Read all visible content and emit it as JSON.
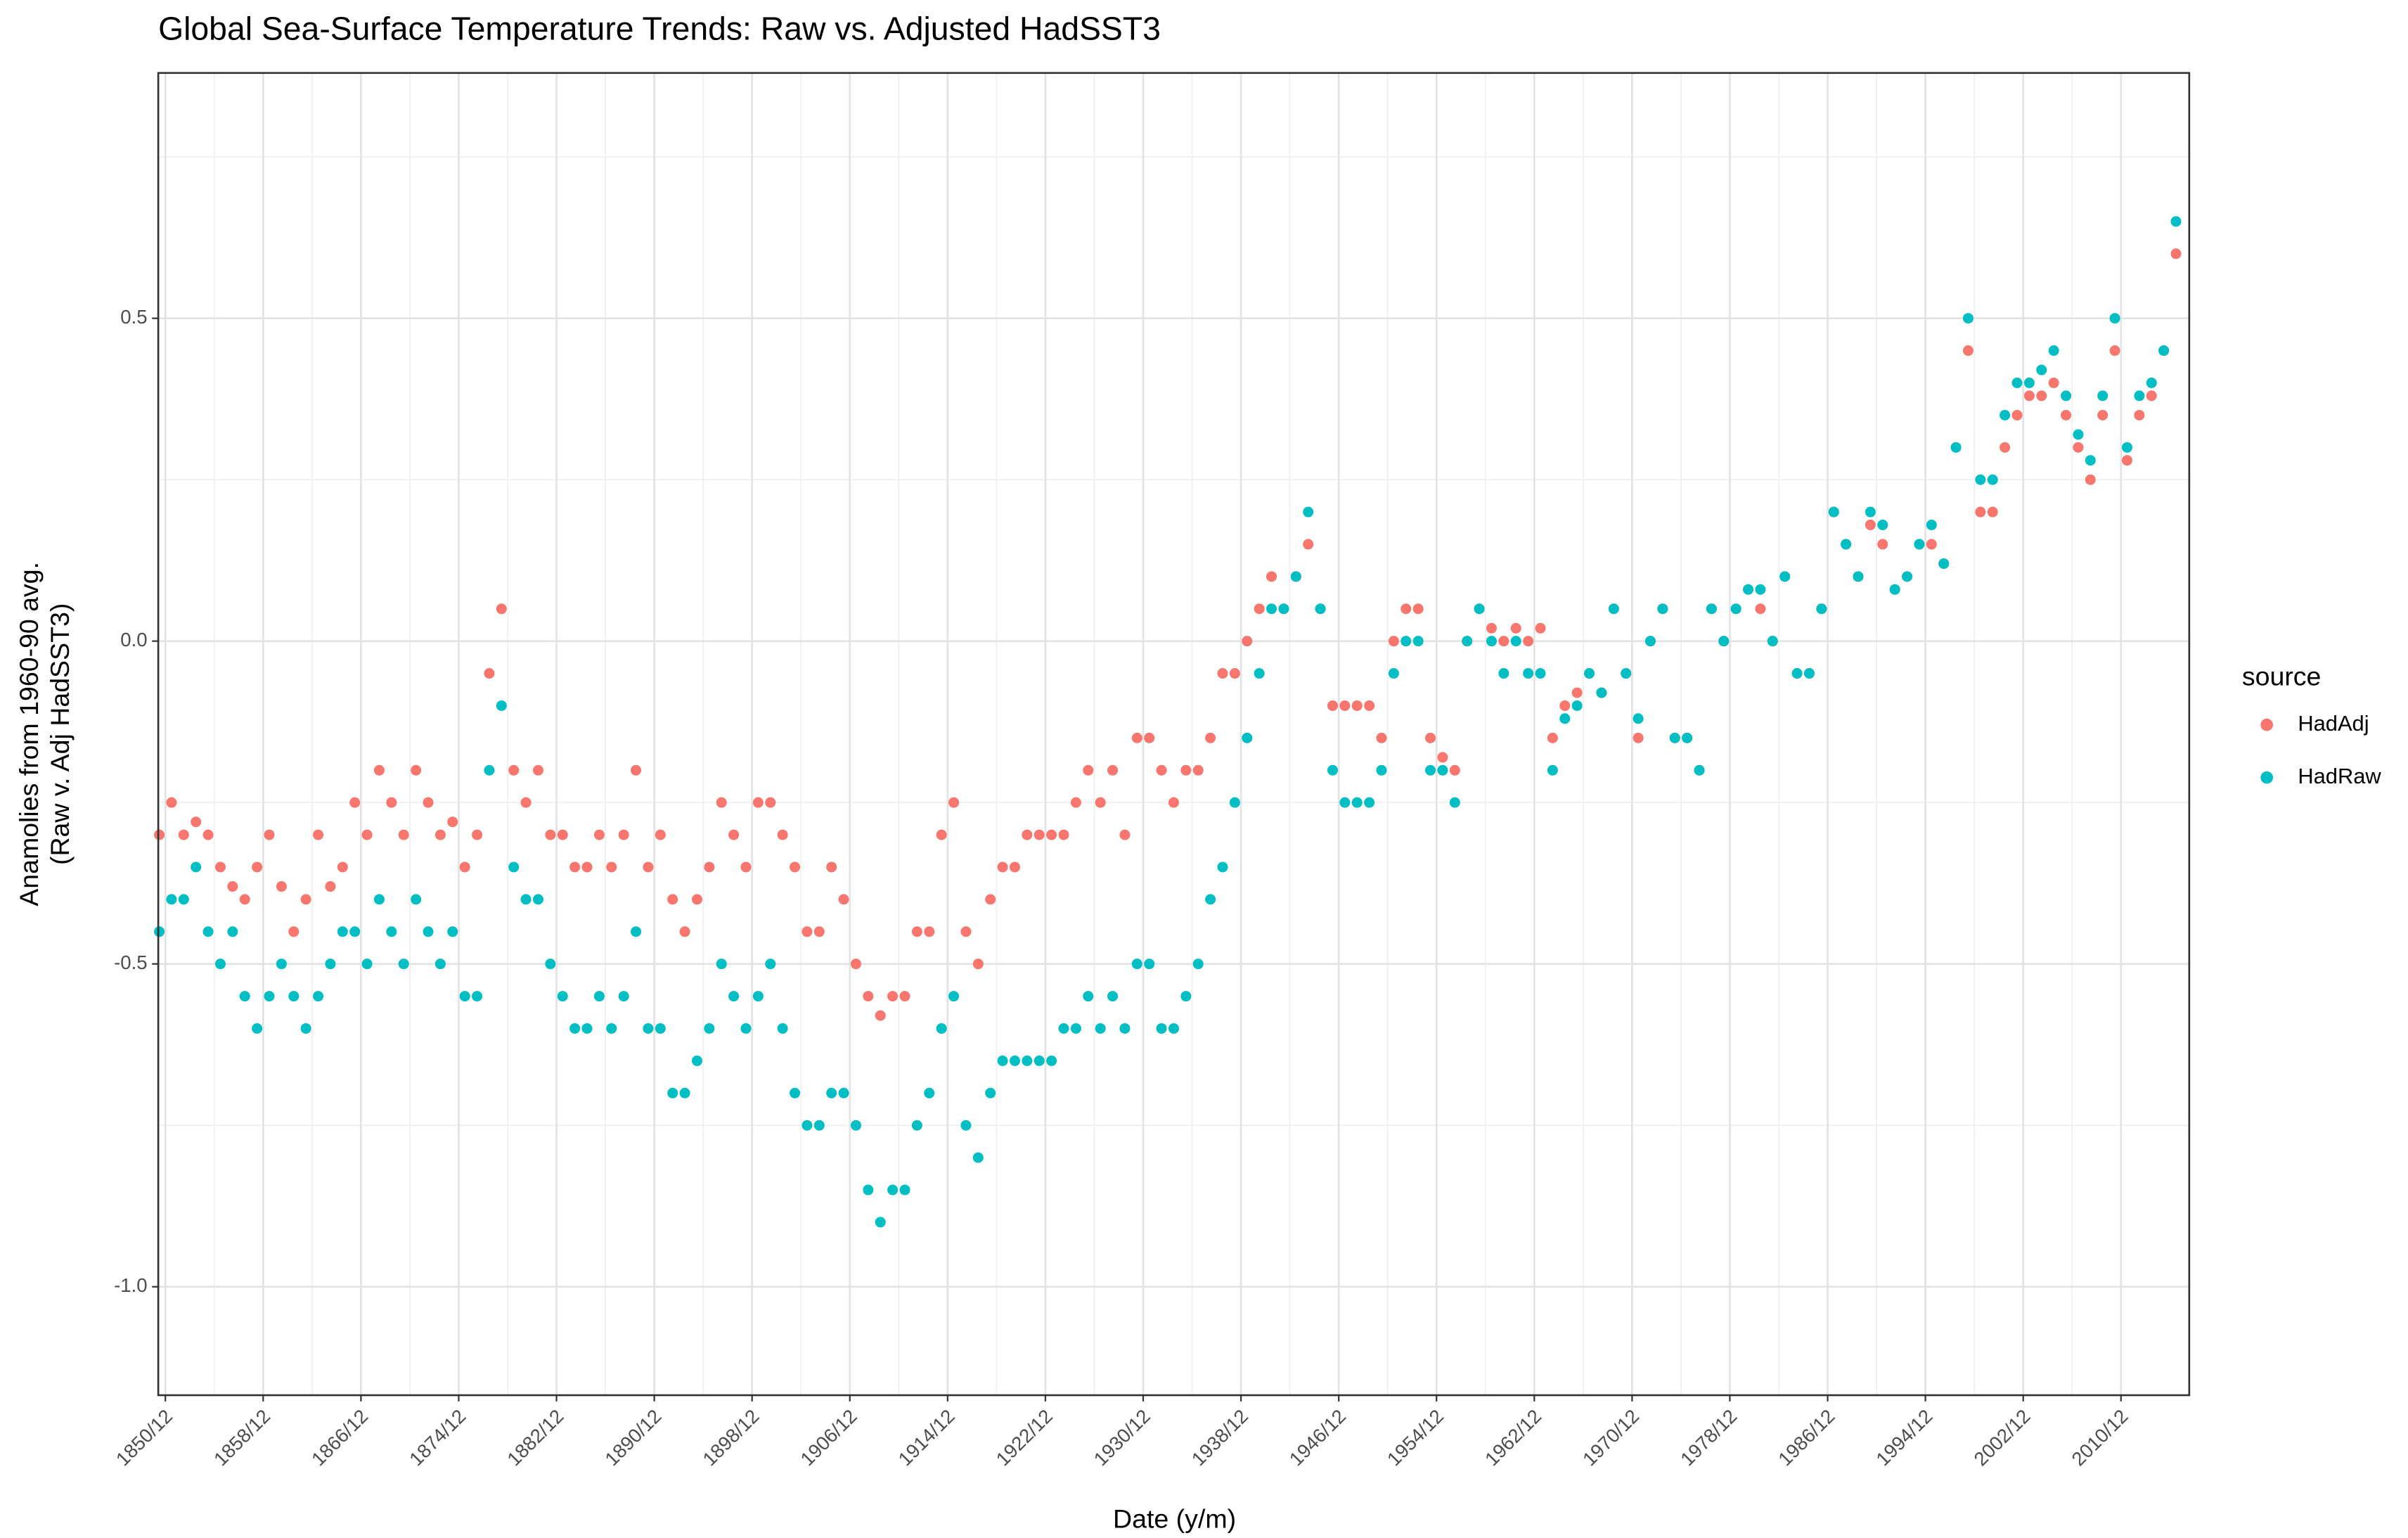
{
  "chart_data": {
    "type": "scatter",
    "title": "Global Sea-Surface Temperature Trends: Raw vs. Adjusted HadSST3",
    "x_label": "Date (y/m)",
    "y_label": [
      "Anamolies from 1960-90 avg.",
      "(Raw v. Adj HadSST3)"
    ],
    "legend_title": "source",
    "legend_position": "right",
    "grid": true,
    "xlim": [
      "1850/05",
      "2016/07"
    ],
    "xticks": [
      "1850/12",
      "1858/12",
      "1866/12",
      "1874/12",
      "1882/12",
      "1890/12",
      "1898/12",
      "1906/12",
      "1914/12",
      "1922/12",
      "1930/12",
      "1938/12",
      "1946/12",
      "1954/12",
      "1962/12",
      "1970/12",
      "1978/12",
      "1986/12",
      "1994/12",
      "2002/12",
      "2010/12"
    ],
    "ylim": [
      -1.168,
      0.88
    ],
    "yticks": [
      {
        "value": -1,
        "label": "-1.0"
      },
      -0.5,
      {
        "value": 0,
        "label": "0.0"
      },
      0.5
    ],
    "x": [
      "1850/06",
      "1851/06",
      "1852/06",
      "1853/06",
      "1854/06",
      "1855/06",
      "1856/06",
      "1857/06",
      "1858/06",
      "1859/06",
      "1860/06",
      "1861/06",
      "1862/06",
      "1863/06",
      "1864/06",
      "1865/06",
      "1866/06",
      "1867/06",
      "1868/06",
      "1869/06",
      "1870/06",
      "1871/06",
      "1872/06",
      "1873/06",
      "1874/06",
      "1875/06",
      "1876/06",
      "1877/06",
      "1878/06",
      "1879/06",
      "1880/06",
      "1881/06",
      "1882/06",
      "1883/06",
      "1884/06",
      "1885/06",
      "1886/06",
      "1887/06",
      "1888/06",
      "1889/06",
      "1890/06",
      "1891/06",
      "1892/06",
      "1893/06",
      "1894/06",
      "1895/06",
      "1896/06",
      "1897/06",
      "1898/06",
      "1899/06",
      "1900/06",
      "1901/06",
      "1902/06",
      "1903/06",
      "1904/06",
      "1905/06",
      "1906/06",
      "1907/06",
      "1908/06",
      "1909/06",
      "1910/06",
      "1911/06",
      "1912/06",
      "1913/06",
      "1914/06",
      "1915/06",
      "1916/06",
      "1917/06",
      "1918/06",
      "1919/06",
      "1920/06",
      "1921/06",
      "1922/06",
      "1923/06",
      "1924/06",
      "1925/06",
      "1926/06",
      "1927/06",
      "1928/06",
      "1929/06",
      "1930/06",
      "1931/06",
      "1932/06",
      "1933/06",
      "1934/06",
      "1935/06",
      "1936/06",
      "1937/06",
      "1938/06",
      "1939/06",
      "1940/06",
      "1941/06",
      "1942/06",
      "1943/06",
      "1944/06",
      "1945/06",
      "1946/06",
      "1947/06",
      "1948/06",
      "1949/06",
      "1950/06",
      "1951/06",
      "1952/06",
      "1953/06",
      "1954/06",
      "1955/06",
      "1956/06",
      "1957/06",
      "1958/06",
      "1959/06",
      "1960/06",
      "1961/06",
      "1962/06",
      "1963/06",
      "1964/06",
      "1965/06",
      "1966/06",
      "1967/06",
      "1968/06",
      "1969/06",
      "1970/06",
      "1971/06",
      "1972/06",
      "1973/06",
      "1974/06",
      "1975/06",
      "1976/06",
      "1977/06",
      "1978/06",
      "1979/06",
      "1980/06",
      "1981/06",
      "1982/06",
      "1983/06",
      "1984/06",
      "1985/06",
      "1986/06",
      "1987/06",
      "1988/06",
      "1989/06",
      "1990/06",
      "1991/06",
      "1992/06",
      "1993/06",
      "1994/06",
      "1995/06",
      "1996/06",
      "1997/06",
      "1998/06",
      "1999/06",
      "2000/06",
      "2001/06",
      "2002/06",
      "2003/06",
      "2004/06",
      "2005/06",
      "2006/06",
      "2007/06",
      "2008/06",
      "2009/06",
      "2010/06",
      "2011/06",
      "2012/06",
      "2013/06",
      "2014/06",
      "2015/06"
    ],
    "series": [
      {
        "name": "HadAdj",
        "color": "#F8766D",
        "values": [
          -0.3,
          -0.25,
          -0.3,
          -0.28,
          -0.3,
          -0.35,
          -0.38,
          -0.4,
          -0.35,
          -0.3,
          -0.38,
          -0.45,
          -0.4,
          -0.3,
          -0.38,
          -0.35,
          -0.25,
          -0.3,
          -0.2,
          -0.25,
          -0.3,
          -0.2,
          -0.25,
          -0.3,
          -0.28,
          -0.35,
          -0.3,
          -0.05,
          0.05,
          -0.2,
          -0.25,
          -0.2,
          -0.3,
          -0.3,
          -0.35,
          -0.35,
          -0.3,
          -0.35,
          -0.3,
          -0.2,
          -0.35,
          -0.3,
          -0.4,
          -0.45,
          -0.4,
          -0.35,
          -0.25,
          -0.3,
          -0.35,
          -0.25,
          -0.25,
          -0.3,
          -0.35,
          -0.45,
          -0.45,
          -0.35,
          -0.4,
          -0.5,
          -0.55,
          -0.58,
          -0.55,
          -0.55,
          -0.45,
          -0.45,
          -0.3,
          -0.25,
          -0.45,
          -0.5,
          -0.4,
          -0.35,
          -0.35,
          -0.3,
          -0.3,
          -0.3,
          -0.3,
          -0.25,
          -0.2,
          -0.25,
          -0.2,
          -0.3,
          -0.15,
          -0.15,
          -0.2,
          -0.25,
          -0.2,
          -0.2,
          -0.15,
          -0.05,
          -0.05,
          0.0,
          0.05,
          0.1,
          0.05,
          0.1,
          0.15,
          0.05,
          -0.1,
          -0.1,
          -0.1,
          -0.1,
          -0.15,
          0.0,
          0.05,
          0.05,
          -0.15,
          -0.18,
          -0.2,
          0.0,
          0.05,
          0.02,
          0.0,
          0.02,
          0.0,
          0.02,
          -0.15,
          -0.1,
          -0.08,
          -0.05,
          -0.08,
          0.05,
          -0.05,
          -0.15,
          0.0,
          0.05,
          -0.15,
          -0.15,
          -0.2,
          0.05,
          0.0,
          0.05,
          0.08,
          0.05,
          0.0,
          0.1,
          -0.05,
          -0.05,
          0.05,
          0.2,
          0.15,
          0.1,
          0.18,
          0.15,
          0.08,
          0.1,
          0.15,
          0.15,
          0.12,
          0.3,
          0.45,
          0.2,
          0.2,
          0.3,
          0.35,
          0.38,
          0.38,
          0.4,
          0.35,
          0.3,
          0.25,
          0.35,
          0.45,
          0.28,
          0.35,
          0.38,
          0.45,
          0.6
        ]
      },
      {
        "name": "HadRaw",
        "color": "#00BFC4",
        "values": [
          -0.45,
          -0.4,
          -0.4,
          -0.35,
          -0.45,
          -0.5,
          -0.45,
          -0.55,
          -0.6,
          -0.55,
          -0.5,
          -0.55,
          -0.6,
          -0.55,
          -0.5,
          -0.45,
          -0.45,
          -0.5,
          -0.4,
          -0.45,
          -0.5,
          -0.4,
          -0.45,
          -0.5,
          -0.45,
          -0.55,
          -0.55,
          -0.2,
          -0.1,
          -0.35,
          -0.4,
          -0.4,
          -0.5,
          -0.55,
          -0.6,
          -0.6,
          -0.55,
          -0.6,
          -0.55,
          -0.45,
          -0.6,
          -0.6,
          -0.7,
          -0.7,
          -0.65,
          -0.6,
          -0.5,
          -0.55,
          -0.6,
          -0.55,
          -0.5,
          -0.6,
          -0.7,
          -0.75,
          -0.75,
          -0.7,
          -0.7,
          -0.75,
          -0.85,
          -0.9,
          -0.85,
          -0.85,
          -0.75,
          -0.7,
          -0.6,
          -0.55,
          -0.75,
          -0.8,
          -0.7,
          -0.65,
          -0.65,
          -0.65,
          -0.65,
          -0.65,
          -0.6,
          -0.6,
          -0.55,
          -0.6,
          -0.55,
          -0.6,
          -0.5,
          -0.5,
          -0.6,
          -0.6,
          -0.55,
          -0.5,
          -0.4,
          -0.35,
          -0.25,
          -0.15,
          -0.05,
          0.05,
          0.05,
          0.1,
          0.2,
          0.05,
          -0.2,
          -0.25,
          -0.25,
          -0.25,
          -0.2,
          -0.05,
          0.0,
          0.0,
          -0.2,
          -0.2,
          -0.25,
          0.0,
          0.05,
          0.0,
          -0.05,
          0.0,
          -0.05,
          -0.05,
          -0.2,
          -0.12,
          -0.1,
          -0.05,
          -0.08,
          0.05,
          -0.05,
          -0.12,
          0.0,
          0.05,
          -0.15,
          -0.15,
          -0.2,
          0.05,
          0.0,
          0.05,
          0.08,
          0.08,
          0.0,
          0.1,
          -0.05,
          -0.05,
          0.05,
          0.2,
          0.15,
          0.1,
          0.2,
          0.18,
          0.08,
          0.1,
          0.15,
          0.18,
          0.12,
          0.3,
          0.5,
          0.25,
          0.25,
          0.35,
          0.4,
          0.4,
          0.42,
          0.45,
          0.38,
          0.32,
          0.28,
          0.38,
          0.5,
          0.3,
          0.38,
          0.4,
          0.45,
          0.65
        ]
      }
    ]
  }
}
